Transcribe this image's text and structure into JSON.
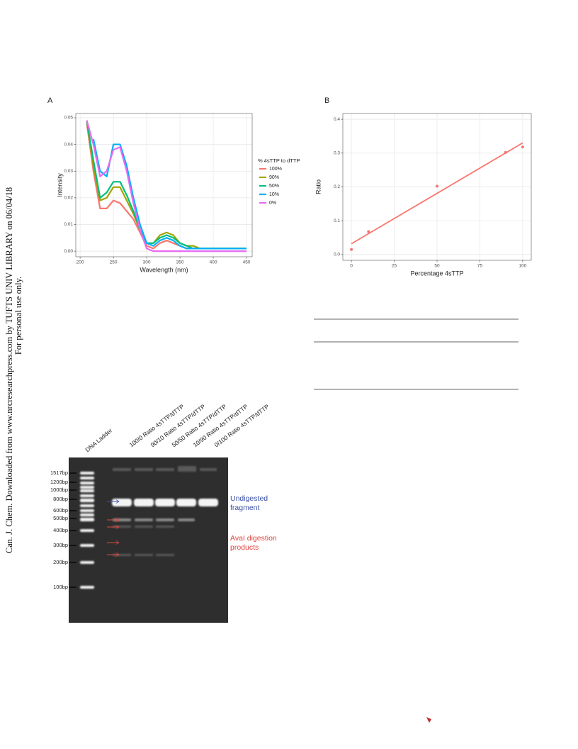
{
  "watermark": [
    "Can. J. Chem. Downloaded from www.nrcresearchpress.com by TUFTS UNIV LIBRARY on 06/04/18",
    "For personal use only."
  ],
  "chart_data": [
    {
      "type": "line",
      "panel": "A",
      "x_label": "Wavelength (nm)",
      "y_label": "Intensity",
      "legend_title": "% 4sTTP to dTTP",
      "legend": "right",
      "grid": true,
      "x": [
        210,
        220,
        230,
        240,
        250,
        260,
        270,
        280,
        290,
        300,
        310,
        320,
        330,
        340,
        350,
        360,
        370,
        380,
        390,
        400,
        410,
        420,
        430,
        440,
        450
      ],
      "series": [
        {
          "name": "100%",
          "color": "#F8766D",
          "values": [
            0.048,
            0.03,
            0.016,
            0.016,
            0.019,
            0.018,
            0.015,
            0.012,
            0.007,
            0.002,
            0.001,
            0.003,
            0.004,
            0.003,
            0.002,
            0.001,
            0.001,
            0.001,
            0.001,
            0.001,
            0.001,
            0.001,
            0.001,
            0.001,
            0.001
          ]
        },
        {
          "name": "90%",
          "color": "#A3A500",
          "values": [
            0.049,
            0.032,
            0.019,
            0.02,
            0.024,
            0.024,
            0.019,
            0.014,
            0.008,
            0.003,
            0.003,
            0.006,
            0.007,
            0.006,
            0.003,
            0.002,
            0.002,
            0.001,
            0.001,
            0.001,
            0.001,
            0.001,
            0.001,
            0.001,
            0.001
          ]
        },
        {
          "name": "50%",
          "color": "#00BF7D",
          "values": [
            0.049,
            0.034,
            0.02,
            0.022,
            0.026,
            0.026,
            0.021,
            0.015,
            0.008,
            0.003,
            0.003,
            0.005,
            0.006,
            0.005,
            0.003,
            0.002,
            0.001,
            0.001,
            0.001,
            0.001,
            0.001,
            0.001,
            0.001,
            0.001,
            0.001
          ]
        },
        {
          "name": "10%",
          "color": "#00B0F6",
          "values": [
            null,
            0.042,
            0.03,
            0.028,
            0.04,
            0.04,
            0.032,
            0.02,
            0.01,
            0.003,
            0.002,
            0.004,
            0.005,
            0.004,
            0.002,
            0.001,
            0.001,
            0.001,
            0.001,
            0.001,
            0.001,
            0.001,
            0.001,
            0.001,
            0.001
          ]
        },
        {
          "name": "0%",
          "color": "#E76BF3",
          "values": [
            0.049,
            0.04,
            0.028,
            0.03,
            0.038,
            0.039,
            0.03,
            0.018,
            0.008,
            0.001,
            0,
            0,
            0,
            0,
            0,
            0,
            0,
            0,
            0,
            0,
            0,
            0,
            0,
            0,
            0
          ]
        }
      ],
      "xlim": [
        193.5,
        458.5
      ],
      "ylim": [
        -0.0021,
        0.0516
      ],
      "xticks": [
        200,
        250,
        300,
        350,
        400,
        450
      ],
      "yticks": [
        {
          "value": 0,
          "label": "0.00"
        },
        0.01,
        0.02,
        0.03,
        0.04,
        0.05
      ]
    },
    {
      "type": "scatter",
      "panel": "B",
      "x_label": "Percentage 4sTTP",
      "y_label": "Ratio",
      "grid": true,
      "color": "#F8766D",
      "x": [
        0,
        10,
        50,
        90,
        100
      ],
      "values": [
        0.015,
        0.068,
        0.202,
        0.302,
        0.318
      ],
      "fit": {
        "x": [
          0,
          100
        ],
        "values": [
          0.032,
          0.33
        ]
      },
      "xlim": [
        -5,
        105
      ],
      "ylim": [
        -0.017,
        0.417
      ],
      "xticks": [
        0,
        25,
        50,
        75,
        100
      ],
      "yticks": [
        {
          "value": 0,
          "label": "0.0"
        },
        0.1,
        0.2,
        0.3,
        0.4
      ]
    }
  ],
  "gel": {
    "lane_labels": [
      "DNA Ladder",
      "100/0 Ratio 4sTTP/dTTP",
      "90/10 Ratio 4sTTP/dTTP",
      "50/50 Ratio 4sTTP/dTTP",
      "10/90 Ratio 4sTTP/dTTP",
      "0/100 Ratio 4sTTP/dTTP"
    ],
    "ladder_labels": [
      "1517bp",
      "1200bp",
      "1000bp",
      "800bp",
      "600bp",
      "500bp",
      "400bp",
      "300bp",
      "200bp",
      "100bp"
    ],
    "undigested_label": [
      "Undigested",
      "fragment"
    ],
    "digestion_label": [
      "AvaI digestion",
      "products"
    ]
  }
}
